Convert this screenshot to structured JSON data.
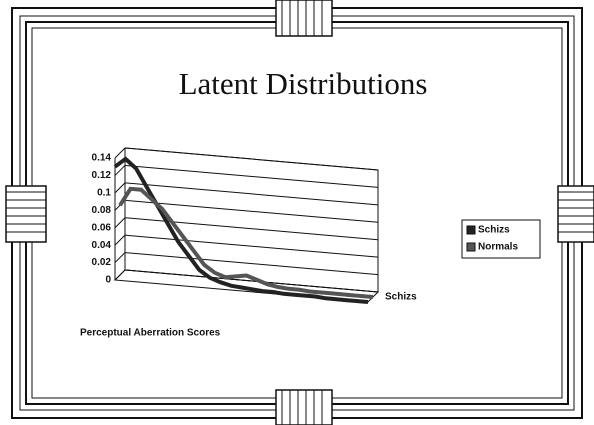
{
  "chart_data": {
    "type": "line3d",
    "title": "Latent Distributions",
    "x_label": "Perceptual Aberration Scores",
    "categories": [
      null,
      null,
      null,
      null,
      null,
      null,
      null,
      null,
      null,
      null,
      null,
      null,
      null,
      null,
      null,
      null,
      null,
      null,
      null,
      null,
      null,
      null,
      null,
      null,
      null
    ],
    "series": [
      {
        "name": "Schizs",
        "color": "#222222",
        "values": [
          0.13,
          0.14,
          0.13,
          0.11,
          0.09,
          0.07,
          0.05,
          0.035,
          0.02,
          0.012,
          0.008,
          0.005,
          0.004,
          0.003,
          0.002,
          0.002,
          0.001,
          0.001,
          0.001,
          0.001,
          0,
          0,
          0,
          0,
          0
        ]
      },
      {
        "name": "Normals",
        "color": "#555555",
        "values": [
          0.08,
          0.1,
          0.1,
          0.09,
          0.08,
          0.065,
          0.05,
          0.035,
          0.02,
          0.012,
          0.008,
          0.01,
          0.012,
          0.008,
          0.004,
          0.002,
          0.001,
          0.001,
          0,
          0,
          0,
          0,
          0,
          0,
          0
        ]
      }
    ],
    "ylim": [
      0,
      0.14
    ],
    "yticks": [
      0,
      0.02,
      0.04,
      0.06,
      0.08,
      0.1,
      0.12,
      0.14
    ],
    "grid": true,
    "legend": "right"
  }
}
